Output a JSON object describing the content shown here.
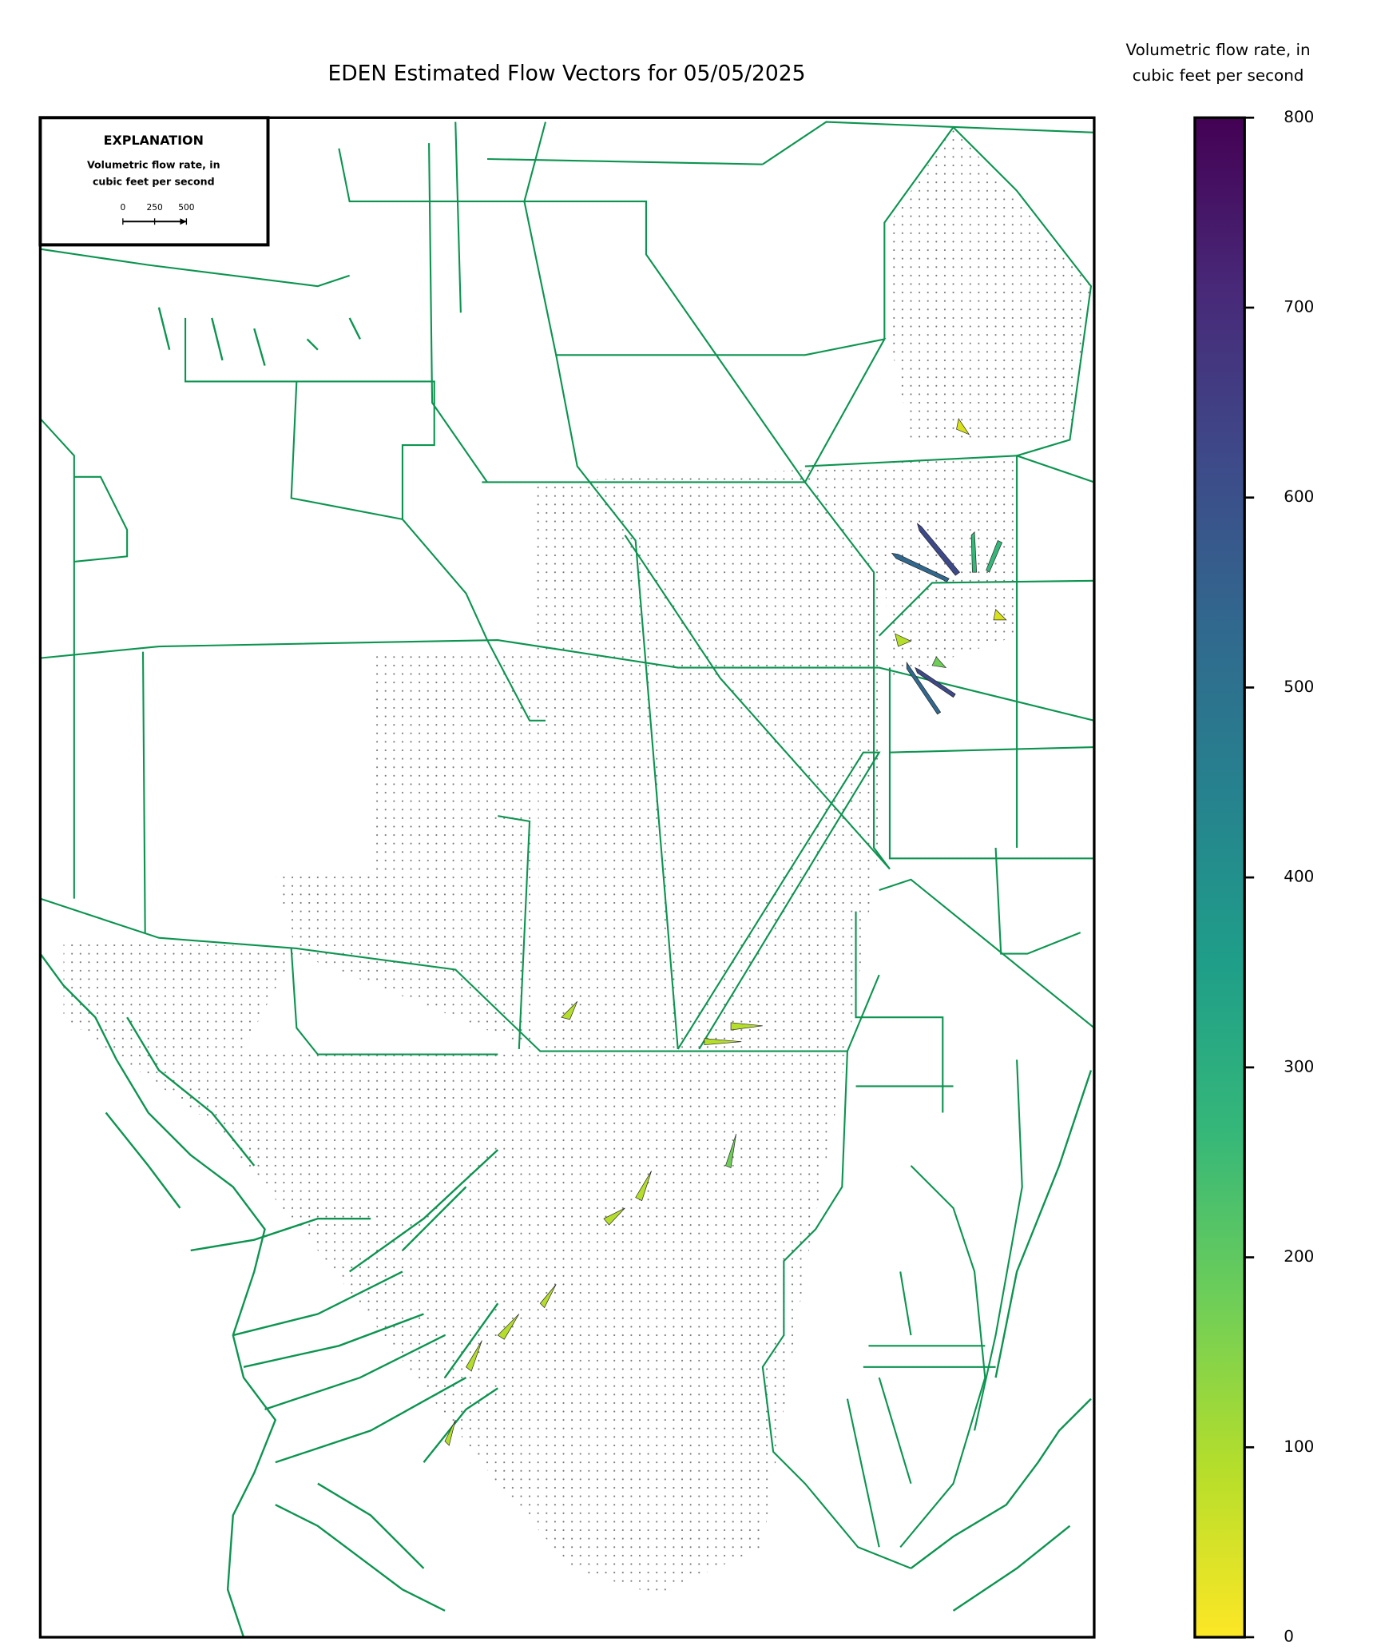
{
  "header": {
    "title": "EDEN Estimated Flow Vectors for 05/05/2025"
  },
  "legend": {
    "title": "EXPLANATION",
    "label_lines": [
      "Volumetric flow rate, in",
      "cubic feet per second"
    ],
    "scale_ticks": [
      0,
      250,
      500
    ]
  },
  "chart_data": {
    "type": "colorbar",
    "title_lines": [
      "Volumetric flow rate, in",
      "cubic feet per second"
    ],
    "ylim": [
      0,
      800
    ],
    "yticks": [
      0,
      100,
      200,
      300,
      400,
      500,
      600,
      700,
      800
    ],
    "colors": [
      "#fde725",
      "#b5de2b",
      "#6ece58",
      "#35b779",
      "#1f9e89",
      "#26828e",
      "#31688e",
      "#3e4989",
      "#482878",
      "#440154"
    ]
  }
}
